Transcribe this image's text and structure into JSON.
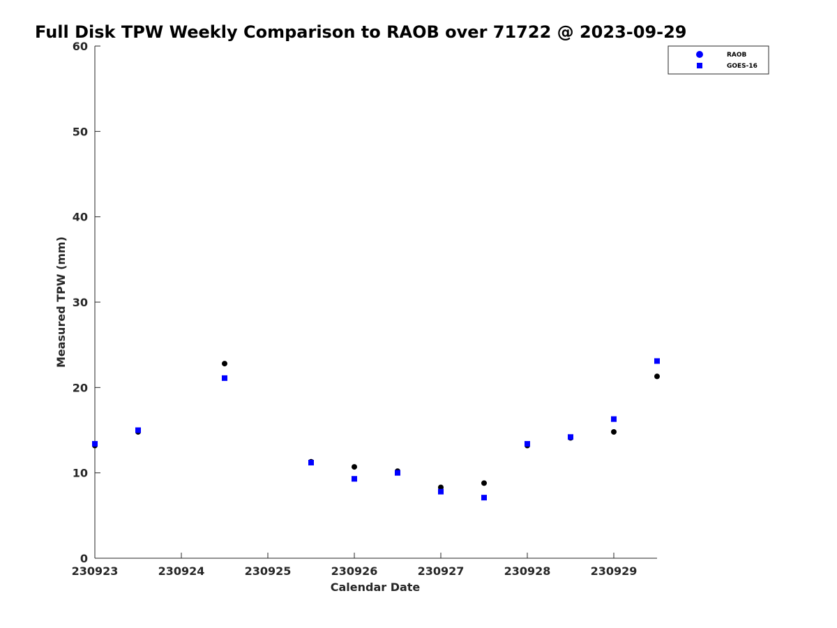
{
  "chart_data": {
    "type": "scatter",
    "title": "Full Disk TPW Weekly Comparison to RAOB over 71722 @ 2023-09-29",
    "xlabel": "Calendar Date",
    "ylabel": "Measured TPW (mm)",
    "xticks": [
      "230923",
      "230924",
      "230925",
      "230926",
      "230927",
      "230928",
      "230929"
    ],
    "ylim": [
      0,
      60
    ],
    "yticks": [
      0,
      10,
      20,
      30,
      40,
      50,
      60
    ],
    "grid": false,
    "legend_position": "top-right",
    "x_unit_note": "x values in days after 230923 00Z",
    "series": [
      {
        "name": "RAOB",
        "marker": "circle",
        "legend_color": "#0000ff",
        "point_color": "#000000",
        "points": [
          {
            "x": "2023-09-23 00Z",
            "y": 13.2
          },
          {
            "x": "2023-09-23 12Z",
            "y": 14.8
          },
          {
            "x": "2023-09-24 12Z",
            "y": 22.8
          },
          {
            "x": "2023-09-25 12Z",
            "y": 11.3
          },
          {
            "x": "2023-09-26 00Z",
            "y": 10.7
          },
          {
            "x": "2023-09-26 12Z",
            "y": 10.2
          },
          {
            "x": "2023-09-27 00Z",
            "y": 8.3
          },
          {
            "x": "2023-09-27 12Z",
            "y": 8.8
          },
          {
            "x": "2023-09-28 00Z",
            "y": 13.2
          },
          {
            "x": "2023-09-28 12Z",
            "y": 14.1
          },
          {
            "x": "2023-09-29 00Z",
            "y": 14.8
          },
          {
            "x": "2023-09-29 12Z",
            "y": 21.3
          }
        ]
      },
      {
        "name": "GOES-16",
        "marker": "square",
        "legend_color": "#0000ff",
        "point_color": "#0000ff",
        "points": [
          {
            "x": "2023-09-23 00Z",
            "y": 13.4
          },
          {
            "x": "2023-09-23 12Z",
            "y": 15.0
          },
          {
            "x": "2023-09-24 12Z",
            "y": 21.1
          },
          {
            "x": "2023-09-25 12Z",
            "y": 11.2
          },
          {
            "x": "2023-09-26 00Z",
            "y": 9.3
          },
          {
            "x": "2023-09-26 12Z",
            "y": 10.0
          },
          {
            "x": "2023-09-27 00Z",
            "y": 7.8
          },
          {
            "x": "2023-09-27 12Z",
            "y": 7.1
          },
          {
            "x": "2023-09-28 00Z",
            "y": 13.4
          },
          {
            "x": "2023-09-28 12Z",
            "y": 14.2
          },
          {
            "x": "2023-09-29 00Z",
            "y": 16.3
          },
          {
            "x": "2023-09-29 12Z",
            "y": 23.1
          }
        ]
      }
    ]
  }
}
